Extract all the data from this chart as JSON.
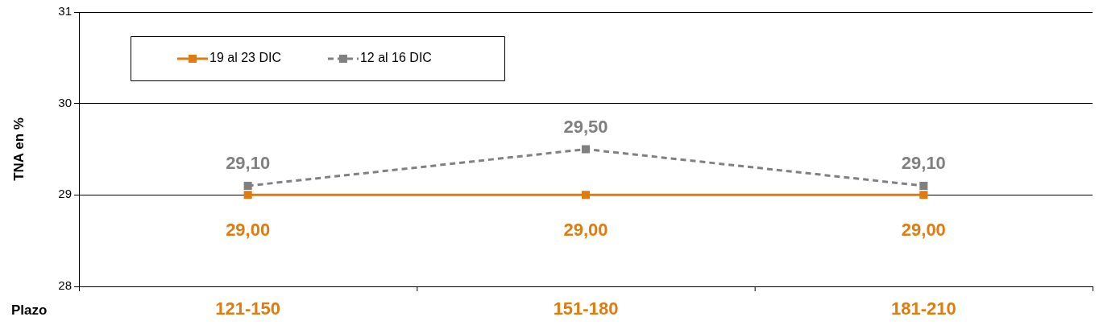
{
  "chart_data": {
    "type": "line",
    "xlabel": "Plazo",
    "ylabel": "TNA en %",
    "categories": [
      "121-150",
      "151-180",
      "181-210"
    ],
    "series": [
      {
        "name": "19 al 23 DIC",
        "color": "#e07b10",
        "values": [
          29.0,
          29.0,
          29.0
        ],
        "line_style": "solid",
        "value_labels": [
          "29,00",
          "29,00",
          "29,00"
        ]
      },
      {
        "name": "12 al 16 DIC",
        "color": "#808080",
        "values": [
          29.1,
          29.5,
          29.1
        ],
        "line_style": "dashed",
        "value_labels": [
          "29,10",
          "29,50",
          "29,10"
        ]
      }
    ],
    "ylim": [
      28,
      31
    ],
    "yticks": [
      28,
      29,
      30,
      31
    ],
    "grid": "y",
    "legend": "top left",
    "marker": "square"
  }
}
